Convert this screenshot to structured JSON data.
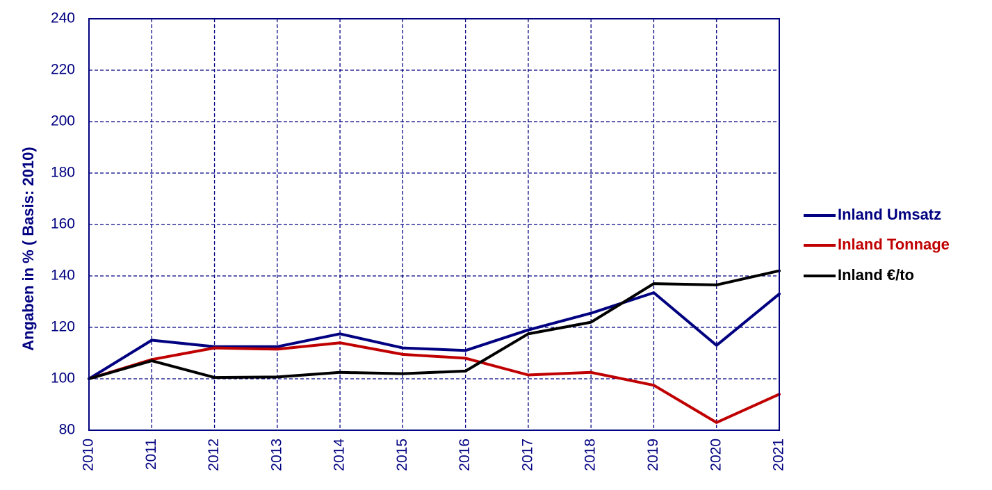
{
  "chart_data": {
    "type": "line",
    "ylabel": "Angaben in % ( Basis: 2010)",
    "xlabel": "",
    "categories": [
      "2010",
      "2011",
      "2012",
      "2013",
      "2014",
      "2015",
      "2016",
      "2017",
      "2018",
      "2019",
      "2020",
      "2021"
    ],
    "ylim": [
      80,
      240
    ],
    "yticks": [
      80,
      100,
      120,
      140,
      160,
      180,
      200,
      220,
      240
    ],
    "grid": true,
    "legend_position": "right",
    "series": [
      {
        "name": "Inland Umsatz",
        "color": "#000080",
        "values": [
          100,
          115,
          112.5,
          112.5,
          117.5,
          112,
          111,
          119,
          125.5,
          133.5,
          113,
          133
        ]
      },
      {
        "name": "Inland Tonnage",
        "color": "#c00000",
        "values": [
          100,
          107.5,
          112,
          111.5,
          114,
          109.5,
          108,
          101.5,
          102.5,
          97.5,
          83,
          94
        ]
      },
      {
        "name": "Inland €/to",
        "color": "#000000",
        "values": [
          100,
          107,
          100.5,
          100.7,
          102.5,
          102,
          103,
          117.5,
          122,
          137,
          136.5,
          142
        ]
      }
    ]
  }
}
